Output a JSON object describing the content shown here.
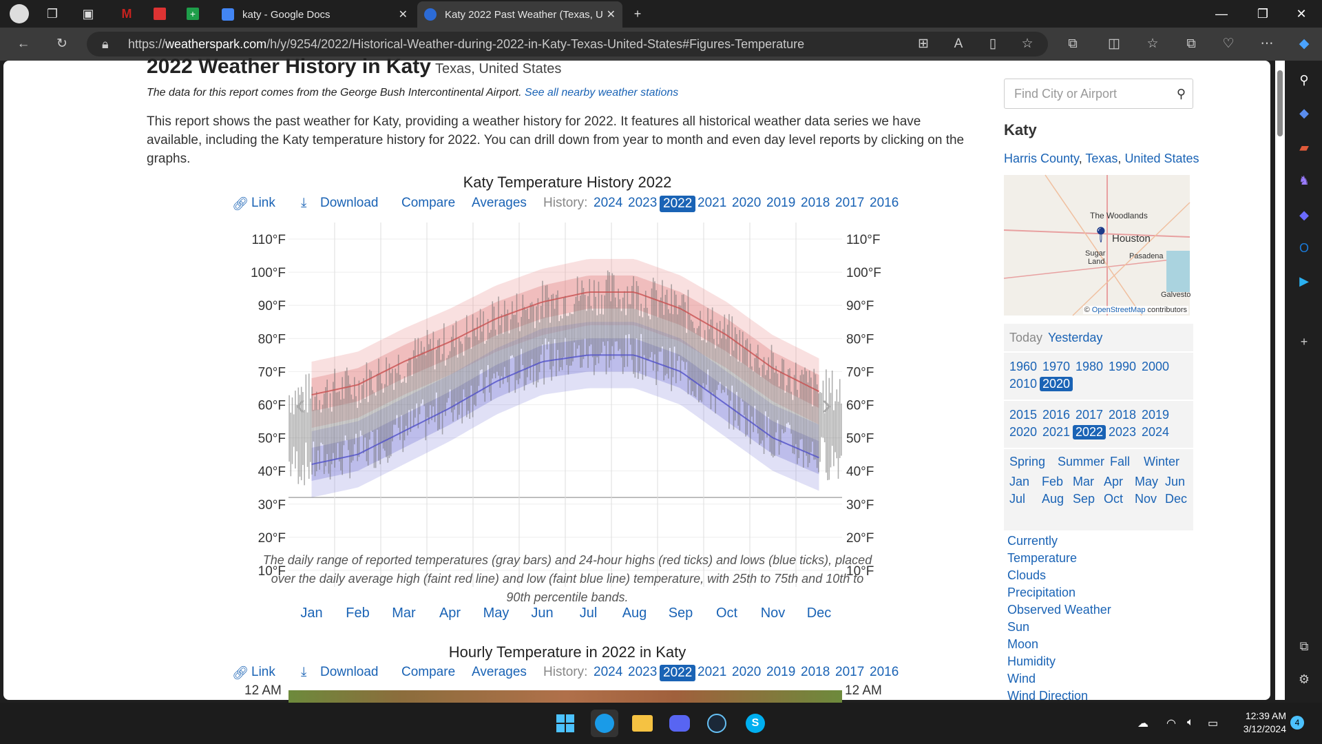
{
  "browser": {
    "tabs": [
      {
        "label": "katy - Google Docs",
        "color": "#4285f4"
      },
      {
        "label": "Katy 2022 Past Weather (Texas, U",
        "color": "#2c6bd6"
      }
    ],
    "url_prefix": "https://",
    "url_domain": "weatherspark.com",
    "url_path": "/h/y/9254/2022/Historical-Weather-during-2022-in-Katy-Texas-United-States#Figures-Temperature"
  },
  "page": {
    "title": "2022 Weather History in Katy",
    "title_region": "Texas, United States",
    "source_text": "The data for this report comes from the George Bush Intercontinental Airport.",
    "source_link": "See all nearby weather stations",
    "intro": "This report shows the past weather for Katy, providing a weather history for 2022. It features all historical weather data series we have available, including the Katy temperature history for 2022. You can drill down from year to month and even day level reports by clicking on the graphs.",
    "chart_controls": {
      "link": "Link",
      "download": "Download",
      "compare": "Compare",
      "averages": "Averages",
      "history": "History:",
      "years": [
        "2024",
        "2023",
        "2022",
        "2021",
        "2020",
        "2019",
        "2018",
        "2017",
        "2016"
      ],
      "selected_year": "2022"
    },
    "chart2_title": "Hourly Temperature in 2022 in Katy",
    "chart2_axis": "12 AM",
    "caption": "The daily range of reported temperatures (gray bars) and 24-hour highs (red ticks) and lows (blue ticks), placed over the daily average high (faint red line) and low (faint blue line) temperature, with 25th to 75th and 10th to 90th percentile bands."
  },
  "chart_data": {
    "type": "line",
    "title": "Katy Temperature History 2022",
    "x": [
      "Jan",
      "Feb",
      "Mar",
      "Apr",
      "May",
      "Jun",
      "Jul",
      "Aug",
      "Sep",
      "Oct",
      "Nov",
      "Dec"
    ],
    "y_ticks": [
      "110°F",
      "100°F",
      "90°F",
      "80°F",
      "70°F",
      "60°F",
      "50°F",
      "40°F",
      "30°F",
      "20°F",
      "10°F"
    ],
    "ylim": [
      5,
      115
    ],
    "series": [
      {
        "name": "daily average high",
        "values": [
          63,
          66,
          73,
          79,
          86,
          91,
          94,
          94,
          89,
          81,
          71,
          64
        ]
      },
      {
        "name": "daily average low",
        "values": [
          42,
          45,
          52,
          59,
          67,
          73,
          75,
          75,
          70,
          60,
          50,
          44
        ]
      }
    ],
    "grid": true
  },
  "sidebar": {
    "search_placeholder": "Find City or Airport",
    "city": "Katy",
    "county": "Harris County",
    "state": "Texas",
    "country": "United States",
    "map_labels": {
      "woodlands": "The Woodlands",
      "houston": "Houston",
      "sugar": "Sugar",
      "land": "Land",
      "pasadena": "Pasadena",
      "galveston": "Galvesto"
    },
    "map_credit_link": "OpenStreetMap",
    "map_credit_rest": "contributors",
    "today": "Today",
    "yesterday": "Yesterday",
    "decades": [
      "1960",
      "1970",
      "1980",
      "1990",
      "2000",
      "2010",
      "2020"
    ],
    "years": [
      "2015",
      "2016",
      "2017",
      "2018",
      "2019",
      "2020",
      "2021",
      "2022",
      "2023",
      "2024"
    ],
    "seasons": [
      "Spring",
      "Summer",
      "Fall",
      "Winter"
    ],
    "months": [
      "Jan",
      "Feb",
      "Mar",
      "Apr",
      "May",
      "Jun",
      "Jul",
      "Aug",
      "Sep",
      "Oct",
      "Nov",
      "Dec"
    ],
    "links": [
      "Currently",
      "Temperature",
      "Clouds",
      "Precipitation",
      "Observed Weather",
      "Sun",
      "Moon",
      "Humidity",
      "Wind",
      "Wind Direction"
    ]
  },
  "taskbar": {
    "time": "12:39 AM",
    "date": "3/12/2024",
    "notif": "4"
  }
}
